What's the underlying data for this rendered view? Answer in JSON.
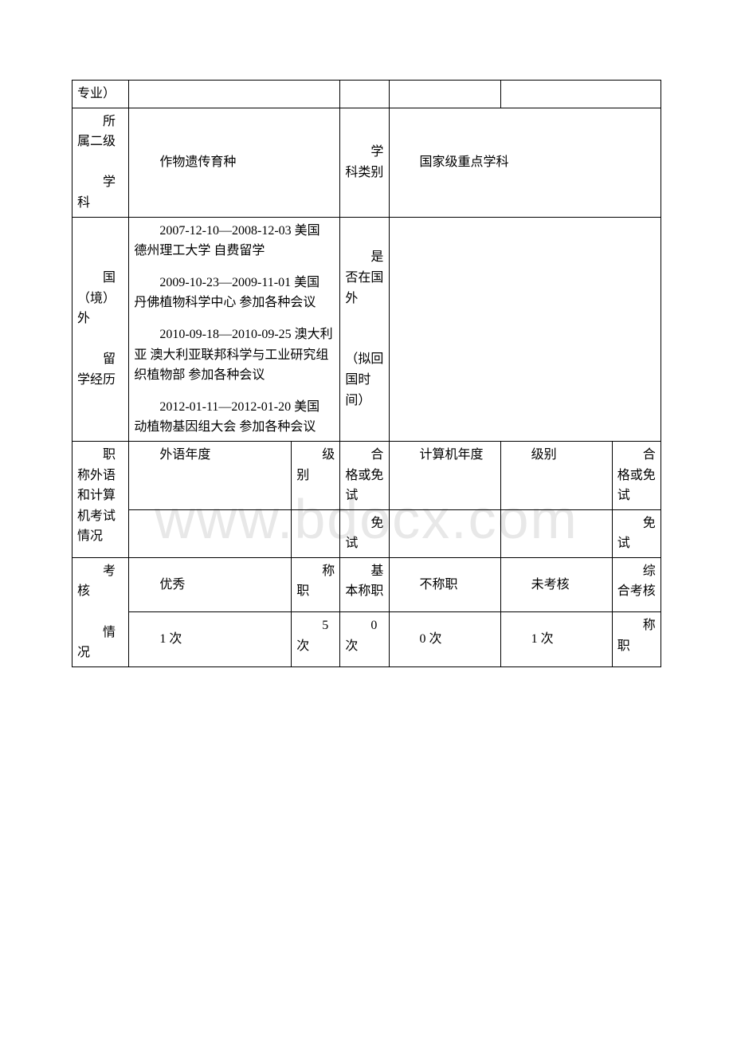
{
  "watermark": "www.bdocx.com",
  "rows": {
    "r1": {
      "label": "专业）",
      "c1": "",
      "c2": "",
      "c3": "",
      "c4": ""
    },
    "r2": {
      "label": "所属二级\n\n学科",
      "c1": "作物遗传育种",
      "c2": "学科类别",
      "c3": "国家级重点学科"
    },
    "r3": {
      "label": "国（境）外\n\n留学经历",
      "p1": "2007-12-10—2008-12-03 美国 德州理工大学 自费留学",
      "p2": "2009-10-23—2009-11-01 美国 丹佛植物科学中心 参加各种会议",
      "p3": "2010-09-18—2010-09-25 澳大利亚 澳大利亚联邦科学与工业研究组织植物部 参加各种会议",
      "p4": "2012-01-11—2012-01-20 美国 动植物基因组大会 参加各种会议",
      "c2": "是否在国外\n\n（拟回国时间）",
      "c3": ""
    },
    "r4": {
      "label": "职称外语和计算机考试情况",
      "a": "外语年度",
      "b": "级别",
      "c": "合格或免试",
      "d": "计算机年度",
      "e": "级别",
      "f": "合格或免试"
    },
    "r5": {
      "a": "",
      "b": "",
      "c": "免试",
      "d": "",
      "e": "",
      "f": "免试"
    },
    "r6": {
      "label": "考核\n\n情况",
      "a": "优秀",
      "b": "称职",
      "c": "基本称职",
      "d": "不称职",
      "e": "未考核",
      "f": "综合考核"
    },
    "r7": {
      "a": "1 次",
      "b": "5次",
      "c": "0次",
      "d": "0 次",
      "e": "1 次",
      "f": "称职"
    }
  }
}
